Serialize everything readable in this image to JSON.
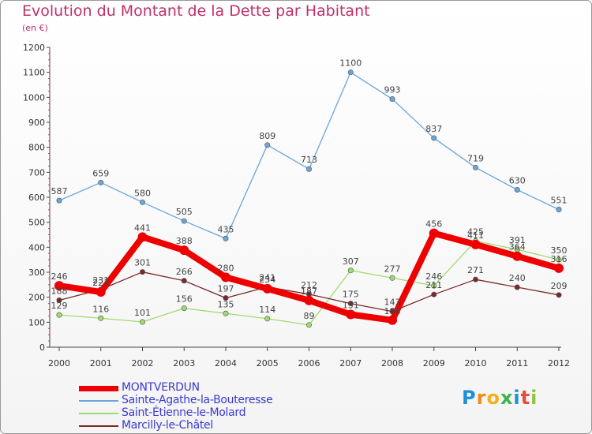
{
  "chart_data": {
    "type": "line",
    "title": "Evolution du Montant de la Dette par Habitant",
    "subtitle": "(en €)",
    "categories": [
      "2000",
      "2001",
      "2002",
      "2003",
      "2004",
      "2005",
      "2006",
      "2007",
      "2008",
      "2009",
      "2010",
      "2011",
      "2012"
    ],
    "ylim": [
      0,
      1200
    ],
    "yticks": [
      0,
      100,
      200,
      300,
      400,
      500,
      600,
      700,
      800,
      900,
      1000,
      1100,
      1200
    ],
    "grid": false,
    "legend_position": "bottom-left",
    "series": [
      {
        "name": "MONTVERDUN",
        "color": "#ee0000",
        "values": [
          246,
          221,
          441,
          388,
          280,
          234,
          187,
          131,
          108,
          456,
          411,
          364,
          316
        ],
        "labels": [
          "246",
          "221",
          "441",
          "388",
          "280",
          "234",
          "187",
          "131",
          "108",
          "456",
          "411",
          "364",
          "316"
        ]
      },
      {
        "name": "Sainte-Agathe-la-Bouteresse",
        "color": "#6aa6d8",
        "values": [
          587,
          659,
          580,
          505,
          435,
          809,
          713,
          1100,
          993,
          837,
          719,
          630,
          551
        ],
        "labels": [
          "587",
          "659",
          "580",
          "505",
          "435",
          "809",
          "713",
          "1100",
          "993",
          "837",
          "719",
          "630",
          "551"
        ]
      },
      {
        "name": "Saint-Étienne-le-Molard",
        "color": "#9fdc6e",
        "values": [
          129,
          116,
          101,
          156,
          135,
          114,
          89,
          307,
          277,
          246,
          425,
          391,
          350
        ],
        "labels": [
          "129",
          "116",
          "101",
          "156",
          "135",
          "114",
          "89",
          "307",
          "277",
          "246",
          "425",
          "391",
          "350"
        ]
      },
      {
        "name": "Marcilly-le-Châtel",
        "color": "#7a2a2a",
        "values": [
          188,
          231,
          301,
          266,
          197,
          241,
          212,
          175,
          143,
          211,
          271,
          240,
          209
        ],
        "labels": [
          "188",
          "231",
          "301",
          "266",
          "197",
          "241",
          "212",
          "175",
          "143",
          "211",
          "271",
          "240",
          "209"
        ]
      }
    ]
  },
  "logo": {
    "letters": [
      "P",
      "r",
      "o",
      "x",
      "i",
      "t",
      "i"
    ]
  }
}
